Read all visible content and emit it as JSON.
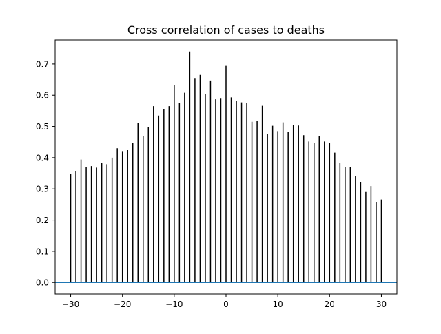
{
  "chart_data": {
    "type": "bar",
    "title": "Cross correlation of cases to deaths",
    "xlabel": "",
    "ylabel": "",
    "xlim": [
      -33,
      33
    ],
    "ylim": [
      -0.037,
      0.777
    ],
    "xticks": [
      -30,
      -20,
      -10,
      0,
      10,
      20,
      30
    ],
    "xtick_labels": [
      "−30",
      "−20",
      "−10",
      "0",
      "10",
      "20",
      "30"
    ],
    "yticks": [
      0.0,
      0.1,
      0.2,
      0.3,
      0.4,
      0.5,
      0.6,
      0.7
    ],
    "ytick_labels": [
      "0.0",
      "0.1",
      "0.2",
      "0.3",
      "0.4",
      "0.5",
      "0.6",
      "0.7"
    ],
    "grid": false,
    "legend": "none",
    "x": [
      -30,
      -29,
      -28,
      -27,
      -26,
      -25,
      -24,
      -23,
      -22,
      -21,
      -20,
      -19,
      -18,
      -17,
      -16,
      -15,
      -14,
      -13,
      -12,
      -11,
      -10,
      -9,
      -8,
      -7,
      -6,
      -5,
      -4,
      -3,
      -2,
      -1,
      0,
      1,
      2,
      3,
      4,
      5,
      6,
      7,
      8,
      9,
      10,
      11,
      12,
      13,
      14,
      15,
      16,
      17,
      18,
      19,
      20,
      21,
      22,
      23,
      24,
      25,
      26,
      27,
      28,
      29,
      30
    ],
    "values": [
      0.347,
      0.356,
      0.394,
      0.37,
      0.373,
      0.368,
      0.384,
      0.379,
      0.4,
      0.43,
      0.421,
      0.424,
      0.447,
      0.51,
      0.47,
      0.497,
      0.565,
      0.535,
      0.555,
      0.565,
      0.633,
      0.576,
      0.608,
      0.74,
      0.655,
      0.665,
      0.605,
      0.647,
      0.587,
      0.589,
      0.694,
      0.593,
      0.582,
      0.577,
      0.574,
      0.515,
      0.518,
      0.566,
      0.475,
      0.502,
      0.485,
      0.513,
      0.482,
      0.505,
      0.503,
      0.472,
      0.452,
      0.447,
      0.47,
      0.452,
      0.446,
      0.416,
      0.384,
      0.369,
      0.37,
      0.342,
      0.322,
      0.29,
      0.309,
      0.258,
      0.266
    ],
    "baseline": 0.0,
    "colors": {
      "stems": "#000000",
      "baseline": "#1f77b4",
      "axes": "#000000",
      "background": "#ffffff"
    }
  }
}
